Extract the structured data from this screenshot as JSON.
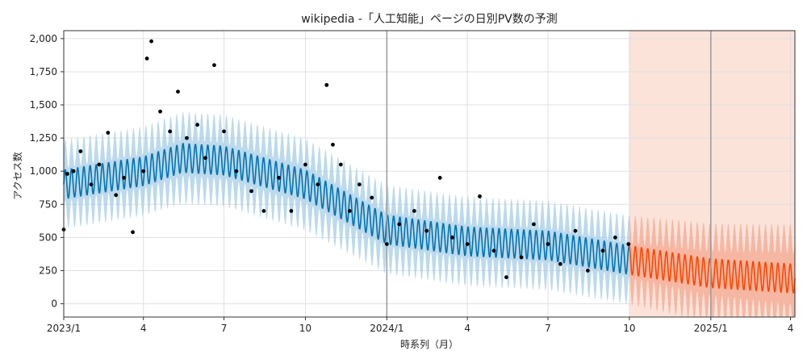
{
  "chart_data": {
    "type": "line",
    "title": "wikipedia -「人工知能」ページの日別PV数の予測",
    "xlabel": "時系列（月）",
    "ylabel": "アクセス数",
    "x_ticks": [
      "2023/1",
      "4",
      "7",
      "10",
      "2024/1",
      "4",
      "7",
      "10",
      "2025/1",
      "4"
    ],
    "y_ticks": [
      "0",
      "250",
      "500",
      "750",
      "1,000",
      "1,250",
      "1,500",
      "1,750",
      "2,000"
    ],
    "ylim": [
      -100,
      2060
    ],
    "xlim": [
      "2023-01-01",
      "2025-04-06"
    ],
    "grid": true,
    "forecast_start": "2024-10-01",
    "forecast_end": "2025-04-06",
    "vertical_lines": [
      "2024-01-01",
      "2025-01-01"
    ],
    "colors": {
      "history_line": "#0072B2",
      "history_band": "#a6cde6",
      "forecast_line": "#ff4500",
      "forecast_band": "#f4a88f",
      "forecast_region": "#fbe3da",
      "observed_points": "#000000",
      "grid": "#e0e0e0",
      "vertical_line": "#9a9a9a"
    },
    "series": [
      {
        "kind": "trend",
        "x": [
          "2023-01-01",
          "2023-04-01",
          "2023-05-15",
          "2023-07-01",
          "2023-10-01",
          "2024-01-01",
          "2024-04-01",
          "2024-07-01",
          "2024-10-01",
          "2025-01-01",
          "2025-04-06"
        ],
        "values": [
          900,
          1000,
          1100,
          1080,
          900,
          560,
          470,
          440,
          330,
          230,
          190
        ]
      },
      {
        "kind": "weekly_amplitude",
        "period_days": 7,
        "amplitude": 110
      },
      {
        "kind": "uncertainty_halfwidth",
        "values": [
          230,
          230,
          240,
          240,
          240,
          230,
          230,
          230,
          230,
          270,
          300
        ]
      }
    ],
    "observed": {
      "x": [
        "2023-01-01",
        "2023-01-05",
        "2023-01-12",
        "2023-01-20",
        "2023-02-01",
        "2023-02-10",
        "2023-02-20",
        "2023-03-01",
        "2023-03-10",
        "2023-03-20",
        "2023-04-01",
        "2023-04-05",
        "2023-04-10",
        "2023-04-20",
        "2023-05-01",
        "2023-05-10",
        "2023-05-20",
        "2023-06-01",
        "2023-06-10",
        "2023-06-20",
        "2023-07-01",
        "2023-07-15",
        "2023-08-01",
        "2023-08-15",
        "2023-09-01",
        "2023-09-15",
        "2023-10-01",
        "2023-10-15",
        "2023-10-25",
        "2023-11-01",
        "2023-11-10",
        "2023-11-20",
        "2023-12-01",
        "2023-12-15",
        "2024-01-01",
        "2024-01-15",
        "2024-02-01",
        "2024-02-15",
        "2024-03-01",
        "2024-03-15",
        "2024-04-01",
        "2024-04-15",
        "2024-05-01",
        "2024-05-15",
        "2024-06-01",
        "2024-06-15",
        "2024-07-01",
        "2024-07-15",
        "2024-08-01",
        "2024-08-15",
        "2024-09-01",
        "2024-09-15",
        "2024-09-30"
      ],
      "y": [
        560,
        980,
        1000,
        1150,
        900,
        1050,
        1290,
        820,
        950,
        540,
        1000,
        1850,
        1980,
        1450,
        1300,
        1600,
        1250,
        1350,
        1100,
        1800,
        1300,
        1000,
        850,
        700,
        950,
        700,
        1050,
        900,
        1650,
        1200,
        1050,
        700,
        900,
        800,
        450,
        600,
        700,
        550,
        950,
        500,
        450,
        810,
        400,
        200,
        350,
        600,
        450,
        300,
        550,
        250,
        400,
        500,
        450
      ]
    }
  }
}
